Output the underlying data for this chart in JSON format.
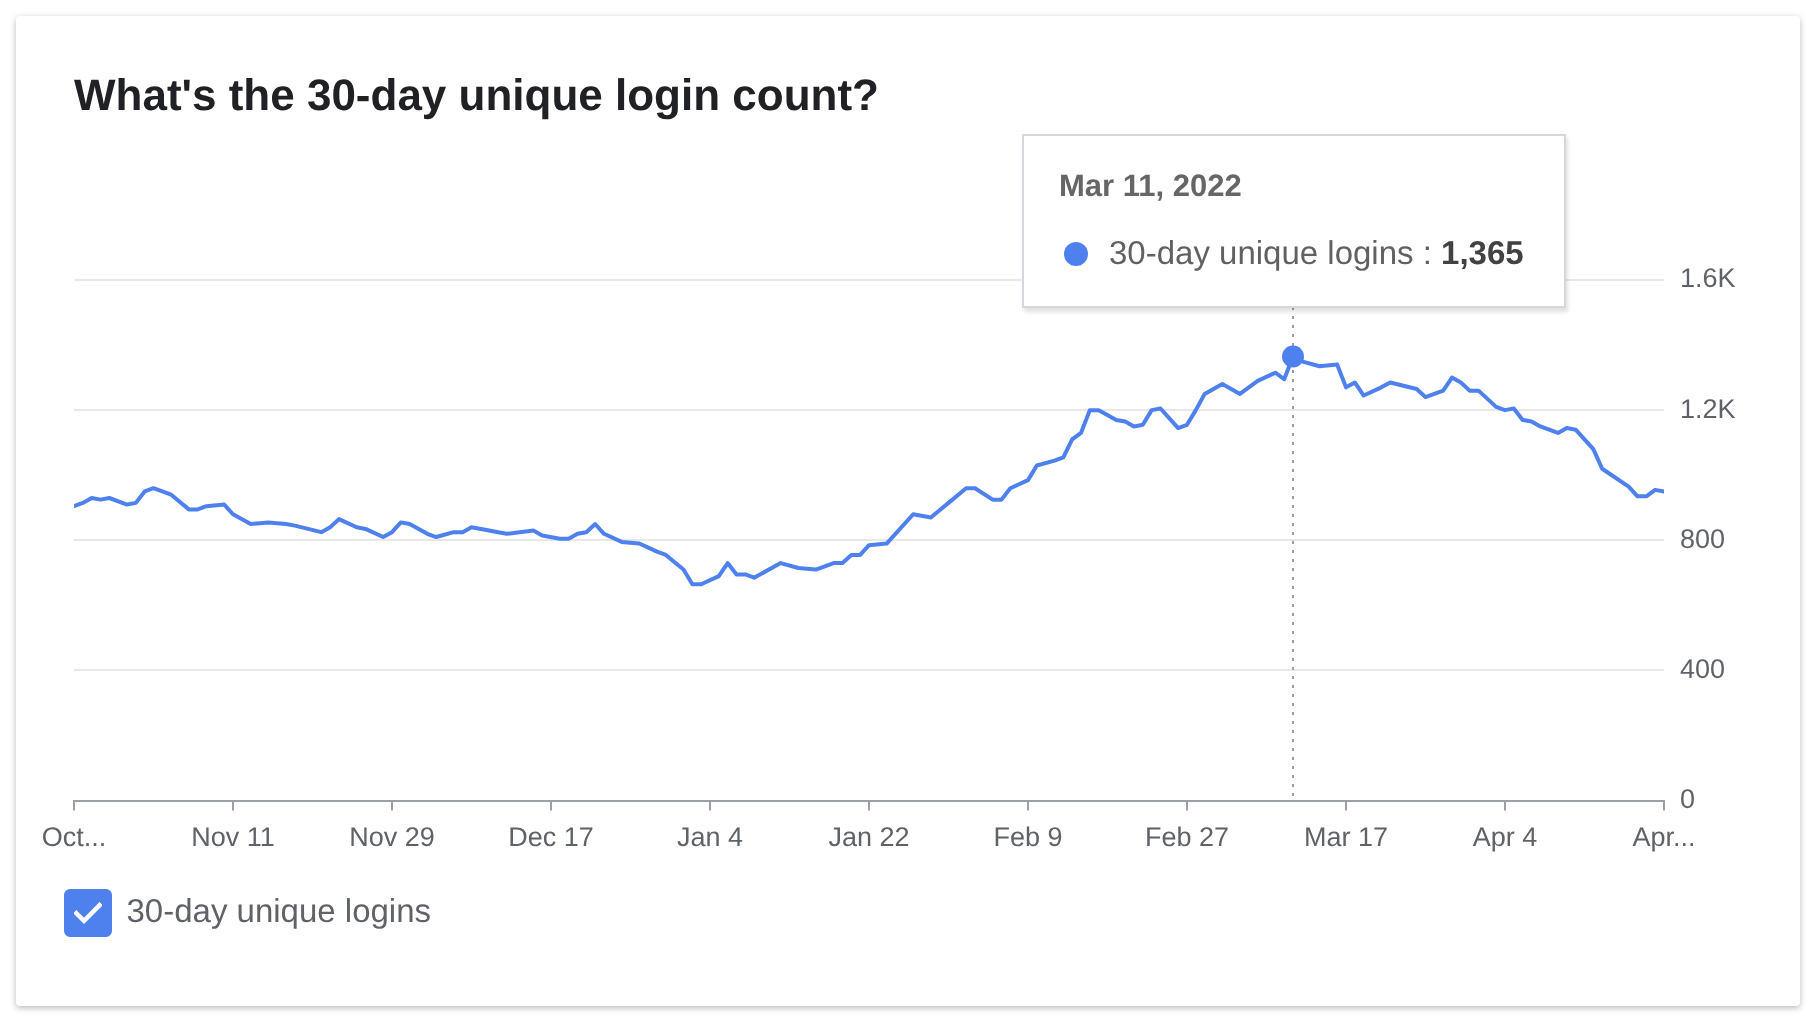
{
  "chart_data": {
    "type": "line",
    "title": "What's the 30-day unique login count?",
    "x": [
      "2021-10-24",
      "2021-10-25",
      "2021-10-26",
      "2021-10-27",
      "2021-10-28",
      "2021-10-30",
      "2021-10-31",
      "2021-11-01",
      "2021-11-02",
      "2021-11-04",
      "2021-11-06",
      "2021-11-07",
      "2021-11-08",
      "2021-11-10",
      "2021-11-11",
      "2021-11-13",
      "2021-11-15",
      "2021-11-17",
      "2021-11-18",
      "2021-11-21",
      "2021-11-22",
      "2021-11-23",
      "2021-11-25",
      "2021-11-26",
      "2021-11-28",
      "2021-11-29",
      "2021-11-30",
      "2021-12-01",
      "2021-12-03",
      "2021-12-04",
      "2021-12-06",
      "2021-12-07",
      "2021-12-08",
      "2021-12-10",
      "2021-12-11",
      "2021-12-12",
      "2021-12-15",
      "2021-12-16",
      "2021-12-18",
      "2021-12-19",
      "2021-12-20",
      "2021-12-21",
      "2021-12-22",
      "2021-12-23",
      "2021-12-25",
      "2021-12-27",
      "2021-12-29",
      "2021-12-30",
      "2022-01-01",
      "2022-01-02",
      "2022-01-03",
      "2022-01-05",
      "2022-01-06",
      "2022-01-07",
      "2022-01-08",
      "2022-01-09",
      "2022-01-12",
      "2022-01-14",
      "2022-01-16",
      "2022-01-18",
      "2022-01-19",
      "2022-01-20",
      "2022-01-21",
      "2022-01-22",
      "2022-01-24",
      "2022-01-27",
      "2022-01-29",
      "2022-01-31",
      "2022-02-02",
      "2022-02-03",
      "2022-02-05",
      "2022-02-06",
      "2022-02-07",
      "2022-02-09",
      "2022-02-10",
      "2022-02-12",
      "2022-02-13",
      "2022-02-14",
      "2022-02-15",
      "2022-02-16",
      "2022-02-17",
      "2022-02-19",
      "2022-02-20",
      "2022-02-21",
      "2022-02-22",
      "2022-02-23",
      "2022-02-24",
      "2022-02-26",
      "2022-02-27",
      "2022-02-28",
      "2022-03-01",
      "2022-03-03",
      "2022-03-05",
      "2022-03-07",
      "2022-03-09",
      "2022-03-10",
      "2022-03-11",
      "2022-03-12",
      "2022-03-14",
      "2022-03-16",
      "2022-03-17",
      "2022-03-18",
      "2022-03-19",
      "2022-03-21",
      "2022-03-22",
      "2022-03-25",
      "2022-03-26",
      "2022-03-28",
      "2022-03-29",
      "2022-03-30",
      "2022-03-31",
      "2022-04-01",
      "2022-04-03",
      "2022-04-04",
      "2022-04-05",
      "2022-04-06",
      "2022-04-07",
      "2022-04-08",
      "2022-04-10",
      "2022-04-11",
      "2022-04-12",
      "2022-04-14",
      "2022-04-15",
      "2022-04-18",
      "2022-04-19",
      "2022-04-20",
      "2022-04-21",
      "2022-04-22"
    ],
    "series": [
      {
        "name": "30-day unique logins",
        "color": "#4e81ee",
        "values": [
          905,
          915,
          930,
          925,
          930,
          910,
          915,
          950,
          960,
          940,
          895,
          895,
          905,
          910,
          880,
          850,
          855,
          850,
          845,
          825,
          840,
          865,
          840,
          835,
          810,
          825,
          855,
          850,
          820,
          810,
          825,
          825,
          840,
          830,
          825,
          820,
          830,
          815,
          805,
          805,
          820,
          825,
          850,
          820,
          795,
          790,
          765,
          755,
          710,
          665,
          665,
          690,
          730,
          695,
          695,
          685,
          730,
          715,
          710,
          730,
          730,
          755,
          755,
          785,
          790,
          880,
          870,
          915,
          960,
          960,
          925,
          925,
          960,
          985,
          1030,
          1045,
          1055,
          1110,
          1130,
          1200,
          1200,
          1170,
          1165,
          1150,
          1155,
          1200,
          1205,
          1145,
          1155,
          1200,
          1250,
          1280,
          1250,
          1290,
          1315,
          1295,
          1365,
          1350,
          1335,
          1340,
          1270,
          1285,
          1245,
          1270,
          1285,
          1265,
          1240,
          1260,
          1300,
          1285,
          1260,
          1260,
          1210,
          1200,
          1205,
          1170,
          1165,
          1150,
          1130,
          1145,
          1140,
          1080,
          1020,
          965,
          935,
          935,
          955,
          950
        ]
      }
    ],
    "xlim": [
      "2021-10-24",
      "2022-04-22"
    ],
    "xticks": [
      {
        "value": "2021-10-24",
        "label": "Oct..."
      },
      {
        "value": "2021-11-11",
        "label": "Nov 11"
      },
      {
        "value": "2021-11-29",
        "label": "Nov 29"
      },
      {
        "value": "2021-12-17",
        "label": "Dec 17"
      },
      {
        "value": "2022-01-04",
        "label": "Jan 4"
      },
      {
        "value": "2022-01-22",
        "label": "Jan 22"
      },
      {
        "value": "2022-02-09",
        "label": "Feb 9"
      },
      {
        "value": "2022-02-27",
        "label": "Feb 27"
      },
      {
        "value": "2022-03-17",
        "label": "Mar 17"
      },
      {
        "value": "2022-04-04",
        "label": "Apr 4"
      },
      {
        "value": "2022-04-22",
        "label": "Apr..."
      }
    ],
    "ylim": [
      0,
      1600
    ],
    "yticks": [
      0,
      400,
      800,
      {
        "value": 1200,
        "label": "1.2K"
      },
      {
        "value": 1600,
        "label": "1.6K"
      }
    ],
    "grid": "y",
    "legend": "bottom left",
    "marker": "none",
    "line_style": "solid",
    "ref_lines": [
      {
        "axis": "x",
        "value": "2022-03-11",
        "color": "#9e9e9e",
        "line_style": "dotted"
      }
    ],
    "annotations": [
      "Mar 11, 2022",
      {
        "text": "30-day unique logins : 1,365",
        "x": "2022-03-11",
        "y": 1365
      }
    ]
  }
}
